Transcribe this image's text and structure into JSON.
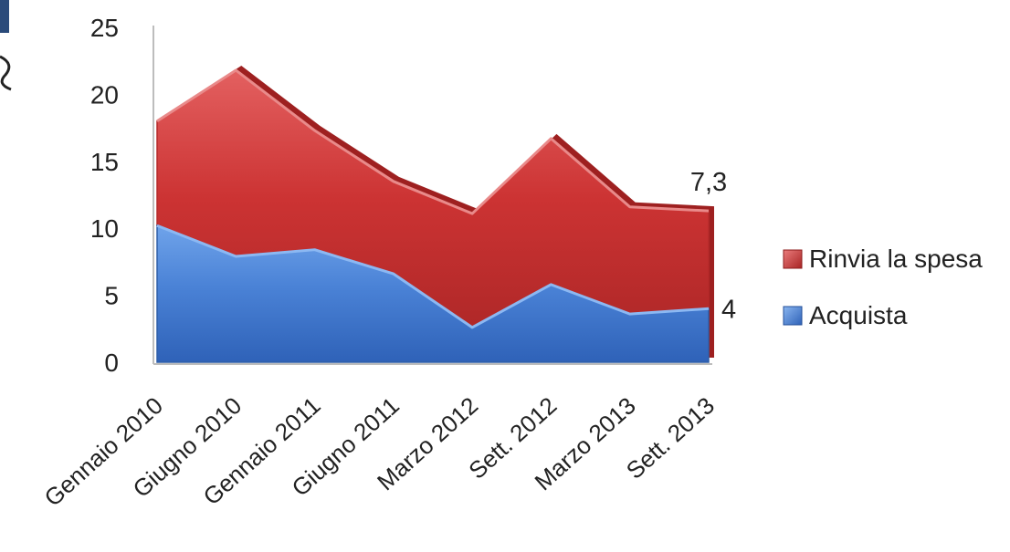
{
  "chart_data": {
    "type": "area",
    "stacked": true,
    "categories": [
      "Gennaio 2010",
      "Giugno 2010",
      "Gennaio 2011",
      "Giugno 2011",
      "Marzo 2012",
      "Sett. 2012",
      "Marzo 2013",
      "Sett. 2013"
    ],
    "series": [
      {
        "name": "Acquista",
        "values": [
          10.2,
          7.9,
          8.4,
          6.6,
          2.6,
          5.8,
          3.6,
          4.0
        ],
        "color": "#3f78cf"
      },
      {
        "name": "Rinvia la spesa",
        "values": [
          7.8,
          13.9,
          8.9,
          6.9,
          8.5,
          10.9,
          8.0,
          7.3
        ],
        "color": "#cc3333"
      }
    ],
    "ylim": [
      0,
      25
    ],
    "yticks": [
      "0",
      "5",
      "10",
      "15",
      "20",
      "25"
    ],
    "data_labels": [
      {
        "series": "Rinvia la spesa",
        "category": "Sett. 2013",
        "text": "7,3"
      },
      {
        "series": "Acquista",
        "category": "Sett. 2013",
        "text": "4"
      }
    ],
    "legend": {
      "position": "right",
      "entries": [
        "Rinvia la spesa",
        "Acquista"
      ]
    },
    "title": "",
    "xlabel": "",
    "ylabel": "",
    "grid": false
  }
}
